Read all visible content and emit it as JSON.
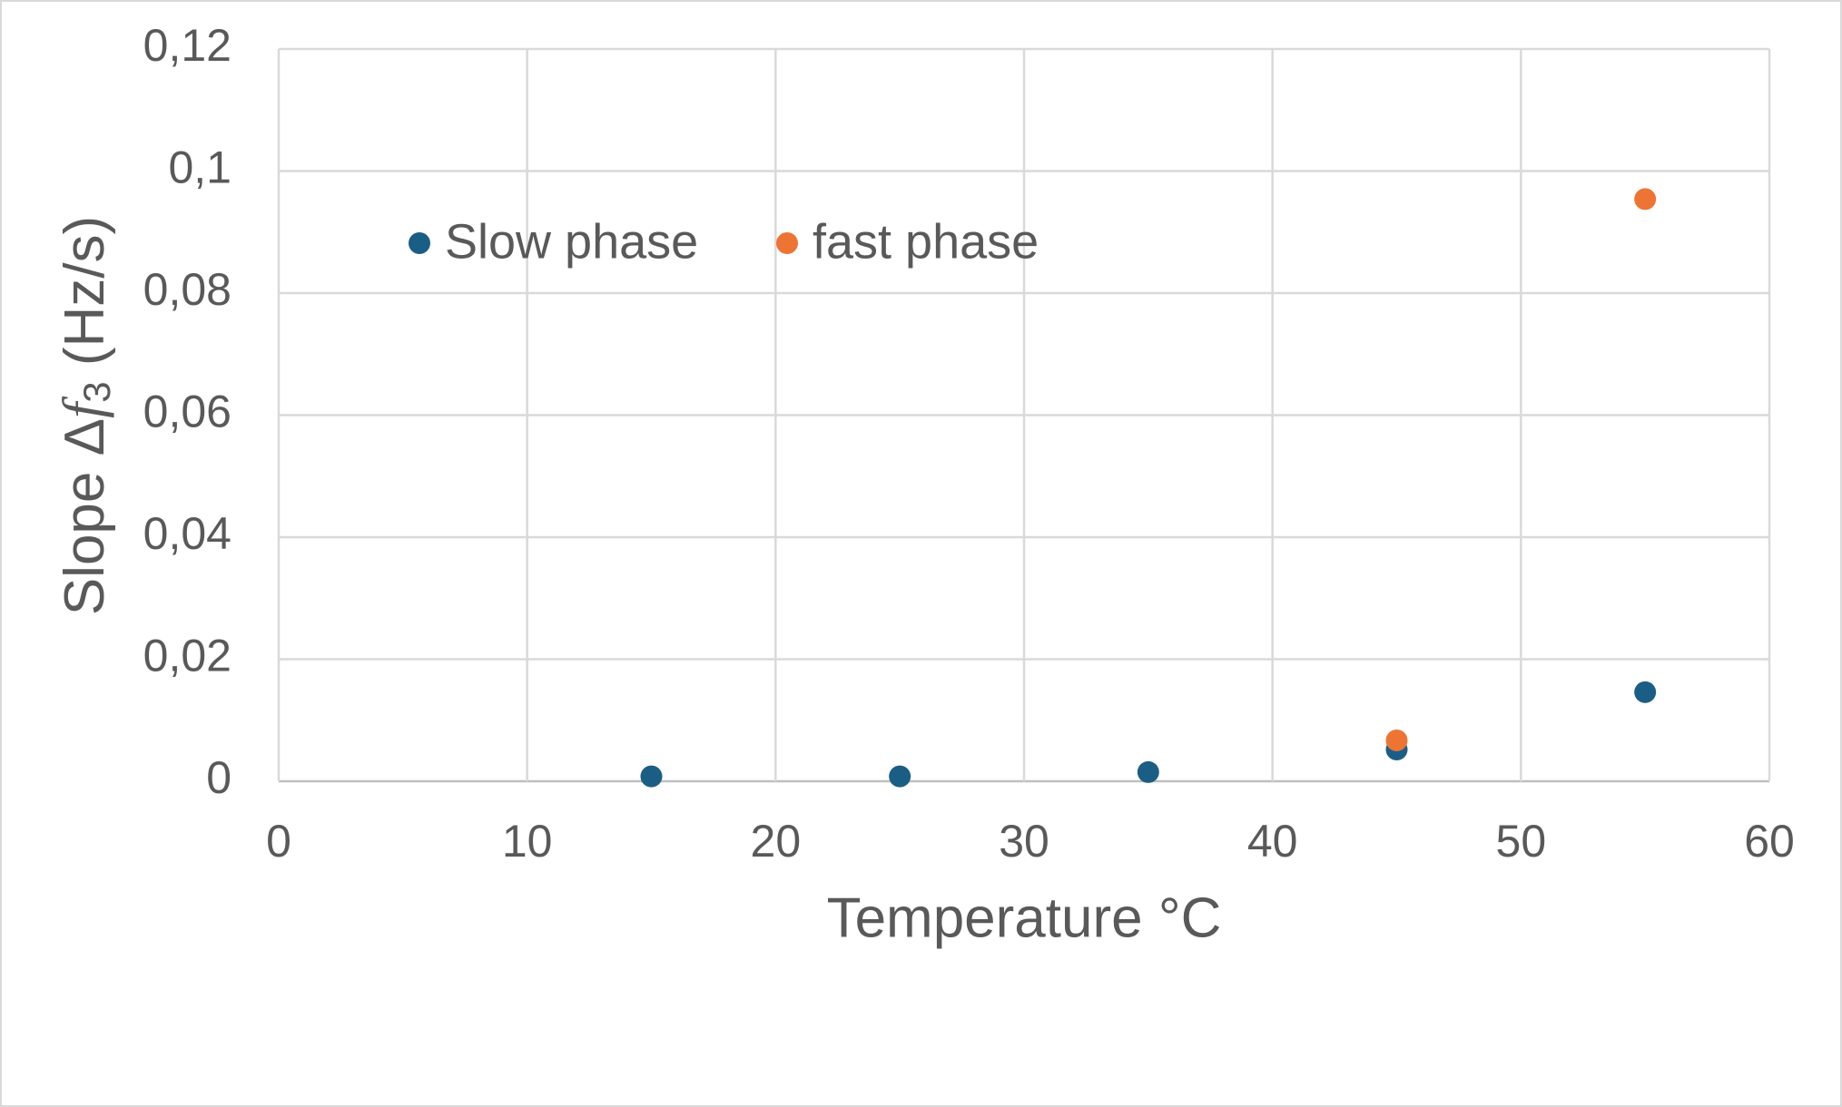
{
  "chart_data": {
    "type": "scatter",
    "x_label": "Temperature °C",
    "y_label": {
      "prefix": "Slope Δ",
      "variable": "f",
      "subscript": "3",
      "suffix": " (Hz/s)"
    },
    "series": [
      {
        "name": "Slow phase",
        "color": "#1b5e85",
        "x": [
          15,
          25,
          35,
          45,
          55
        ],
        "values": [
          0.0008,
          0.0008,
          0.0015,
          0.0052,
          0.0146
        ]
      },
      {
        "name": "fast phase",
        "color": "#ee7434",
        "x": [
          45,
          55
        ],
        "values": [
          0.0067,
          0.0954
        ]
      }
    ],
    "xlim": [
      0,
      60
    ],
    "xticks": [
      0,
      10,
      20,
      30,
      40,
      50,
      60
    ],
    "ylim": [
      0,
      0.12
    ],
    "yticks": [
      0,
      {
        "value": 0.02,
        "label": "0,02"
      },
      {
        "value": 0.04,
        "label": "0,04"
      },
      {
        "value": 0.06,
        "label": "0,06"
      },
      {
        "value": 0.08,
        "label": "0,08"
      },
      {
        "value": 0.1,
        "label": "0,1"
      },
      {
        "value": 0.12,
        "label": "0,12"
      }
    ],
    "grid": true,
    "legend": "top-left"
  }
}
